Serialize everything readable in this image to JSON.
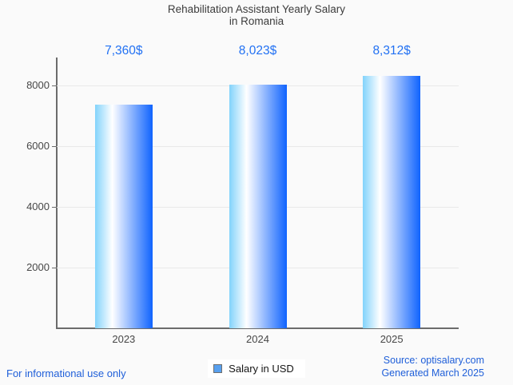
{
  "title": {
    "line1": "Rehabilitation Assistant Yearly Salary",
    "line2": "in Romania"
  },
  "chart_data": {
    "type": "bar",
    "title": "Rehabilitation Assistant Yearly Salary in Romania",
    "categories": [
      "2023",
      "2024",
      "2025"
    ],
    "values": [
      7360,
      8023,
      8312
    ],
    "value_labels": [
      "7,360$",
      "8,023$",
      "8,312$"
    ],
    "series_name": "Salary in USD",
    "xlabel": "",
    "ylabel": "",
    "ylim": [
      0,
      8920
    ],
    "yticks": [
      2000,
      4000,
      6000,
      8000
    ],
    "grid": true,
    "legend_position": "bottom",
    "bar_gradient": [
      "#82d3fb",
      "#ffffff",
      "#0f63fe"
    ]
  },
  "legend": {
    "label": "Salary in USD",
    "marker_fill": "#58a0ef",
    "marker_border": "#6e6e6e"
  },
  "footer": {
    "left": "For informational use only",
    "source": "Source: optisalary.com",
    "generated": "Generated March 2025"
  },
  "colors": {
    "background": "#fafafa",
    "title_text": "#3c3c3c",
    "axis_text": "#474747",
    "axis_line": "#6b6b6b",
    "gridline": "#e9e9e9",
    "value_label": "#2271f3",
    "footer_link": "#1f5fd9",
    "legend_background": "#ffffff"
  }
}
